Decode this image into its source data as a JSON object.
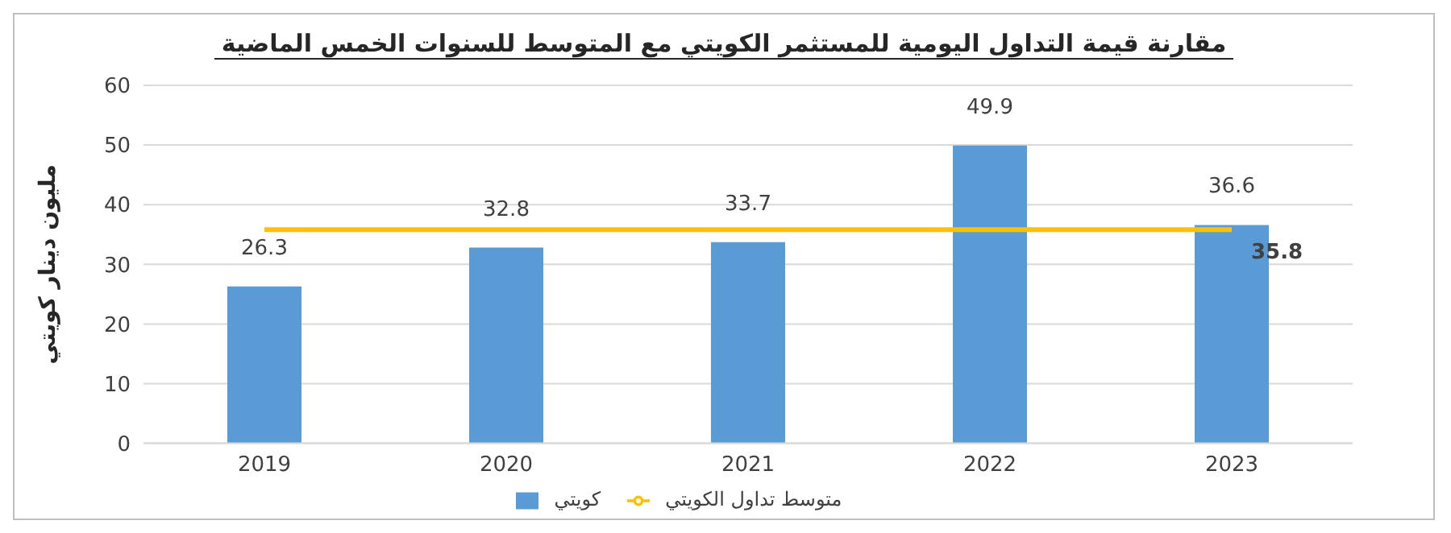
{
  "chart_data": {
    "type": "bar",
    "title": "مقارنة قيمة التداول اليومية للمستثمر الكويتي مع المتوسط للسنوات الخمس الماضية",
    "ylabel": "مليون دينار كويتي",
    "categories": [
      "2019",
      "2020",
      "2021",
      "2022",
      "2023"
    ],
    "series": [
      {
        "name": "كويتي",
        "color": "#5b9bd5",
        "values": [
          26.3,
          32.8,
          33.7,
          49.9,
          36.6
        ],
        "value_labels": [
          "26.3",
          "32.8",
          "33.7",
          "49.9",
          "36.6"
        ]
      },
      {
        "name": "متوسط تداول الكويتي",
        "type": "line",
        "color": "#ffc000",
        "values": [
          35.8,
          35.8,
          35.8,
          35.8,
          35.8
        ],
        "value_labels": [
          null,
          null,
          null,
          null,
          "35.8"
        ]
      }
    ],
    "ylim": [
      0,
      60
    ],
    "yticks": [
      0,
      10,
      20,
      30,
      40,
      50,
      60
    ],
    "grid": "y",
    "legend": "bottom"
  }
}
